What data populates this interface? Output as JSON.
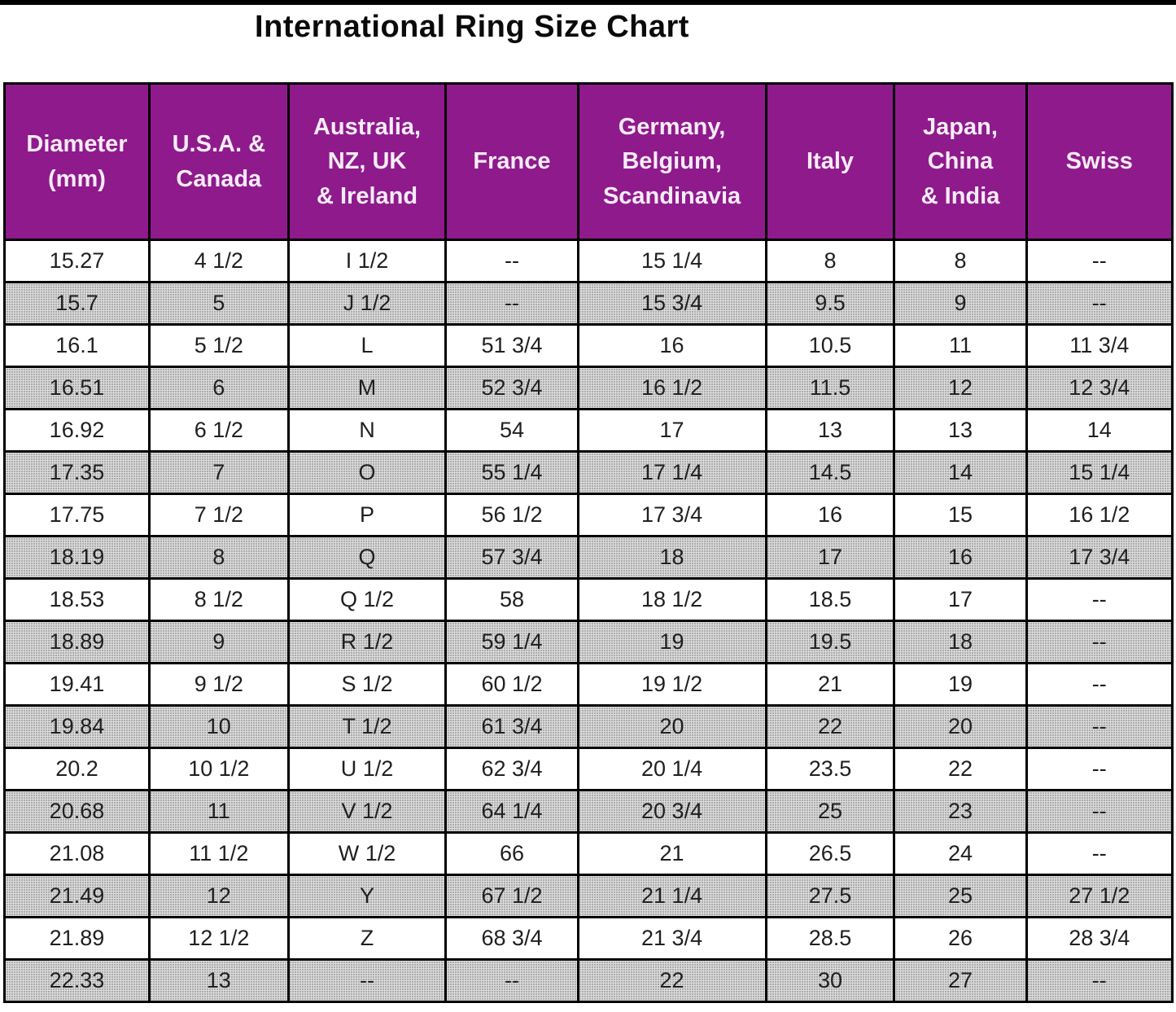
{
  "title": "International Ring Size Chart",
  "colors": {
    "header_bg": "#8e1a8c",
    "header_text": "#f7ecf7",
    "border": "#000000",
    "alt_row_bg": "#d2d2d2",
    "body_text": "#1f1f1f",
    "top_rule": "#000000"
  },
  "chart_data": {
    "type": "table",
    "title": "International Ring Size Chart",
    "columns": [
      "Diameter\n(mm)",
      "U.S.A. &\nCanada",
      "Australia,\nNZ, UK\n& Ireland",
      "France",
      "Germany,\nBelgium,\nScandinavia",
      "Italy",
      "Japan,\nChina\n& India",
      "Swiss"
    ],
    "rows": [
      [
        "15.27",
        "4 1/2",
        "I 1/2",
        "--",
        "15 1/4",
        "8",
        "8",
        "--"
      ],
      [
        "15.7",
        "5",
        "J 1/2",
        "--",
        "15 3/4",
        "9.5",
        "9",
        "--"
      ],
      [
        "16.1",
        "5 1/2",
        "L",
        "51 3/4",
        "16",
        "10.5",
        "11",
        "11 3/4"
      ],
      [
        "16.51",
        "6",
        "M",
        "52 3/4",
        "16 1/2",
        "11.5",
        "12",
        "12 3/4"
      ],
      [
        "16.92",
        "6 1/2",
        "N",
        "54",
        "17",
        "13",
        "13",
        "14"
      ],
      [
        "17.35",
        "7",
        "O",
        "55 1/4",
        "17 1/4",
        "14.5",
        "14",
        "15 1/4"
      ],
      [
        "17.75",
        "7 1/2",
        "P",
        "56 1/2",
        "17 3/4",
        "16",
        "15",
        "16 1/2"
      ],
      [
        "18.19",
        "8",
        "Q",
        "57 3/4",
        "18",
        "17",
        "16",
        "17 3/4"
      ],
      [
        "18.53",
        "8 1/2",
        "Q 1/2",
        "58",
        "18 1/2",
        "18.5",
        "17",
        "--"
      ],
      [
        "18.89",
        "9",
        "R 1/2",
        "59 1/4",
        "19",
        "19.5",
        "18",
        "--"
      ],
      [
        "19.41",
        "9 1/2",
        "S 1/2",
        "60 1/2",
        "19 1/2",
        "21",
        "19",
        "--"
      ],
      [
        "19.84",
        "10",
        "T 1/2",
        "61 3/4",
        "20",
        "22",
        "20",
        "--"
      ],
      [
        "20.2",
        "10 1/2",
        "U 1/2",
        "62 3/4",
        "20 1/4",
        "23.5",
        "22",
        "--"
      ],
      [
        "20.68",
        "11",
        "V 1/2",
        "64 1/4",
        "20 3/4",
        "25",
        "23",
        "--"
      ],
      [
        "21.08",
        "11 1/2",
        "W 1/2",
        "66",
        "21",
        "26.5",
        "24",
        "--"
      ],
      [
        "21.49",
        "12",
        "Y",
        "67 1/2",
        "21 1/4",
        "27.5",
        "25",
        "27 1/2"
      ],
      [
        "21.89",
        "12 1/2",
        "Z",
        "68 3/4",
        "21 3/4",
        "28.5",
        "26",
        "28 3/4"
      ],
      [
        "22.33",
        "13",
        "--",
        "--",
        "22",
        "30",
        "27",
        "--"
      ]
    ]
  }
}
